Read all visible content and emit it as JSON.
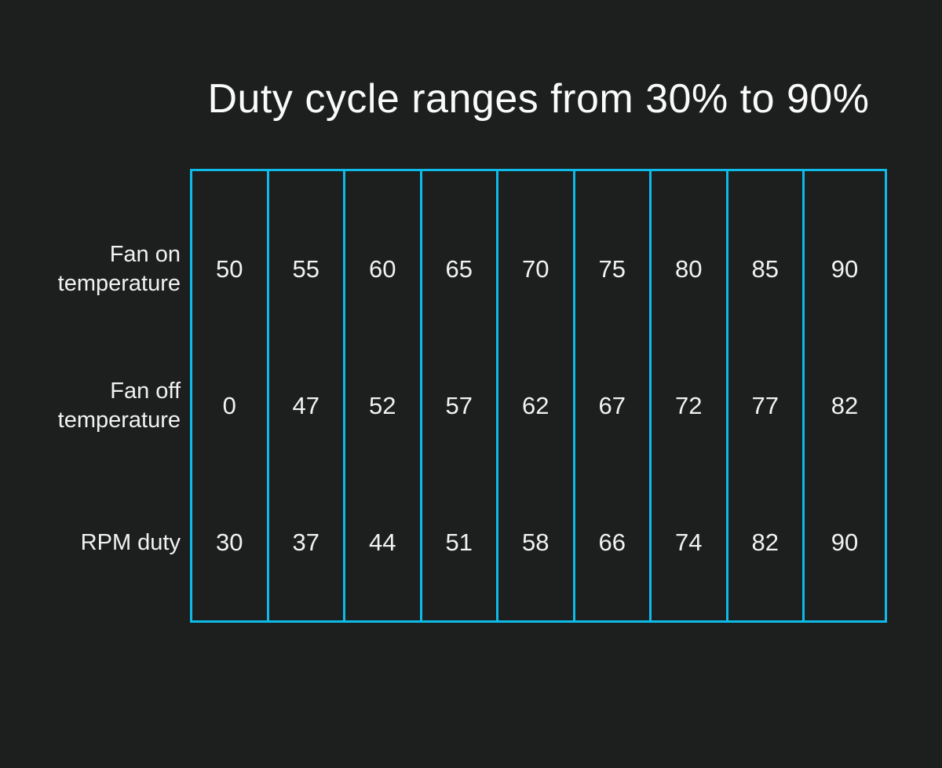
{
  "title": "Duty cycle ranges from 30% to 90%",
  "colors": {
    "background": "#1d1e1e",
    "table_border": "#0ebbe8",
    "text": "#f2f2f2"
  },
  "table": {
    "row_labels": [
      [
        "Fan on",
        "temperature"
      ],
      [
        "Fan off",
        "temperature"
      ],
      [
        "RPM duty"
      ]
    ],
    "rows": [
      [
        50,
        55,
        60,
        65,
        70,
        75,
        80,
        85,
        90
      ],
      [
        0,
        47,
        52,
        57,
        62,
        67,
        72,
        77,
        82
      ],
      [
        30,
        37,
        44,
        51,
        58,
        66,
        74,
        82,
        90
      ]
    ]
  },
  "chart_data": {
    "type": "table",
    "title": "Duty cycle ranges from 30% to 90%",
    "columns": 9,
    "series": [
      {
        "name": "Fan on temperature",
        "values": [
          50,
          55,
          60,
          65,
          70,
          75,
          80,
          85,
          90
        ]
      },
      {
        "name": "Fan off temperature",
        "values": [
          0,
          47,
          52,
          57,
          62,
          67,
          72,
          77,
          82
        ]
      },
      {
        "name": "RPM duty",
        "values": [
          30,
          37,
          44,
          51,
          58,
          66,
          74,
          82,
          90
        ]
      }
    ],
    "layout": {
      "gridlines": "vertical-only",
      "row_labels_position": "left",
      "title_position": "top-center",
      "theme": "dark"
    }
  }
}
